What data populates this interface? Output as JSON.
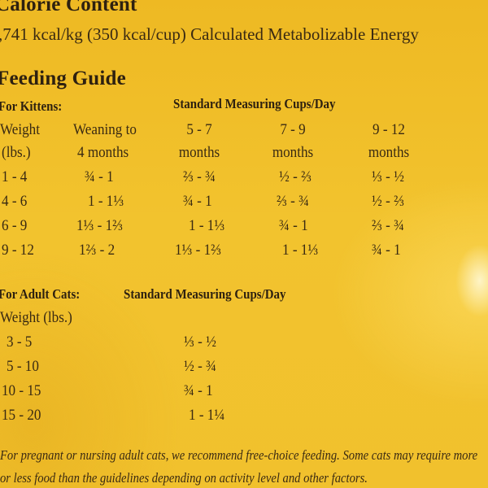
{
  "calorie": {
    "title": "Calorie Content",
    "text": ",741 kcal/kg (350 kcal/cup) Calculated Metabolizable Energy"
  },
  "feeding": {
    "title": "Feeding Guide",
    "kittens": {
      "label": "For Kittens:",
      "cups_header": "Standard Measuring Cups/Day",
      "col_headers": [
        [
          "Weight",
          "(lbs.)"
        ],
        [
          "Weaning to",
          "4 months"
        ],
        [
          "5 - 7",
          "months"
        ],
        [
          "7 - 9",
          "months"
        ],
        [
          "9 - 12",
          "months"
        ]
      ],
      "rows": [
        [
          "1 - 4",
          "¾ - 1",
          "⅔ - ¾",
          "½ - ⅔",
          "⅓ - ½"
        ],
        [
          "4 - 6",
          "1 - 1⅓",
          "¾ - 1",
          "⅔ - ¾",
          "½ - ⅔"
        ],
        [
          "6 - 9",
          "1⅓ - 1⅔",
          "1 - 1⅓",
          "¾ - 1",
          "⅔ - ¾"
        ],
        [
          "9 - 12",
          "1⅔ - 2",
          "1⅓ - 1⅔",
          "1 - 1⅓",
          "¾ - 1"
        ]
      ]
    },
    "adults": {
      "label": "For Adult Cats:",
      "cups_header": "Standard Measuring Cups/Day",
      "weight_header": "Weight (lbs.)",
      "rows": [
        [
          "3 - 5",
          "⅓ - ½"
        ],
        [
          "5 - 10",
          "½ - ¾"
        ],
        [
          "10 - 15",
          "¾ - 1"
        ],
        [
          "15 - 20",
          "1 - 1¼"
        ]
      ]
    },
    "note_line1": "For pregnant or nursing adult cats, we recommend free-choice feeding. Some cats may require more",
    "note_line2": "or less food than the guidelines depending on activity level and other factors."
  }
}
